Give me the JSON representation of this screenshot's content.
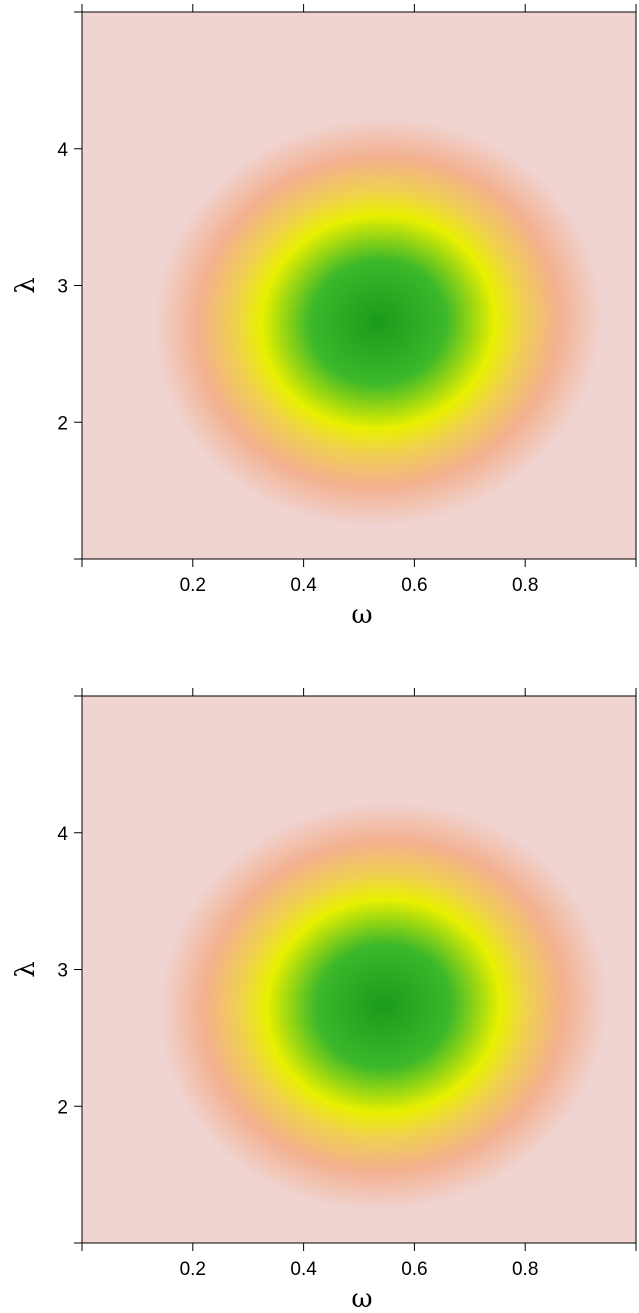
{
  "chart_data": [
    {
      "type": "heatmap",
      "title": "",
      "xlabel": "ω",
      "ylabel": "λ",
      "xlim": [
        0,
        1
      ],
      "ylim": [
        1,
        5
      ],
      "x_ticks": [
        0,
        0.2,
        0.4,
        0.6,
        0.8,
        1.0
      ],
      "x_tick_labels": [
        "",
        "0.2",
        "0.4",
        "0.6",
        "0.8",
        ""
      ],
      "y_ticks": [
        1,
        2,
        3,
        4,
        5
      ],
      "y_tick_labels": [
        "",
        "2",
        "3",
        "4",
        ""
      ],
      "top_ticks": [
        0,
        0.2,
        0.4,
        0.6,
        0.8,
        1.0
      ],
      "grid": false,
      "peak": {
        "x": 0.54,
        "y": 2.78
      },
      "colorscale": [
        "#f0d4d2",
        "#f3b08e",
        "#f0d050",
        "#e8f000",
        "#3cb82a",
        "#1b9a1b"
      ]
    },
    {
      "type": "heatmap",
      "title": "",
      "xlabel": "ω",
      "ylabel": "λ",
      "xlim": [
        0,
        1
      ],
      "ylim": [
        1,
        5
      ],
      "x_ticks": [
        0,
        0.2,
        0.4,
        0.6,
        0.8,
        1.0
      ],
      "x_tick_labels": [
        "",
        "0.2",
        "0.4",
        "0.6",
        "0.8",
        ""
      ],
      "y_ticks": [
        1,
        2,
        3,
        4,
        5
      ],
      "y_tick_labels": [
        "",
        "2",
        "3",
        "4",
        ""
      ],
      "top_ticks": [
        0,
        0.2,
        0.4,
        0.6,
        0.8,
        1.0
      ],
      "grid": false,
      "peak": {
        "x": 0.55,
        "y": 2.78
      },
      "colorscale": [
        "#f0d4d2",
        "#f3b08e",
        "#f0d050",
        "#e8f000",
        "#3cb82a",
        "#1b9a1b"
      ]
    }
  ]
}
